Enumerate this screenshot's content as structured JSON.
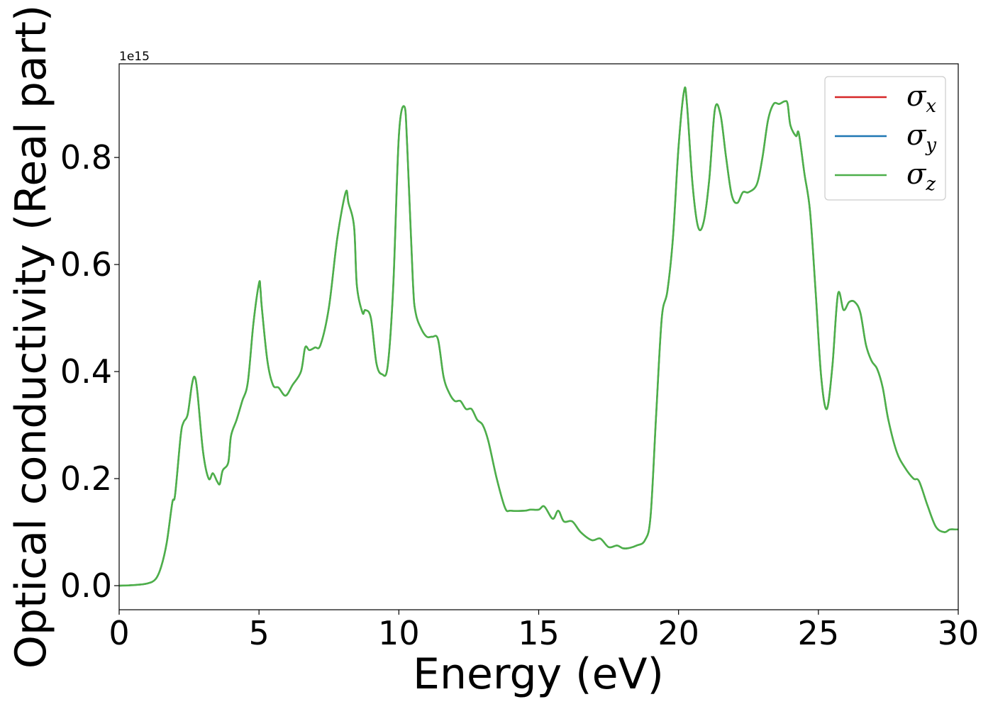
{
  "chart_data": {
    "type": "line",
    "xlabel": "Energy (eV)",
    "ylabel": "Optical conductivity (Real part)",
    "y_offset_label": "1e15",
    "xlim": [
      0,
      30
    ],
    "ylim": [
      -0.045,
      0.975
    ],
    "xticks": [
      0,
      5,
      10,
      15,
      20,
      25,
      30
    ],
    "xtick_labels": [
      "0",
      "5",
      "10",
      "15",
      "20",
      "25",
      "30"
    ],
    "yticks": [
      0.0,
      0.2,
      0.4,
      0.6,
      0.8
    ],
    "ytick_labels": [
      "0.0",
      "0.2",
      "0.4",
      "0.6",
      "0.8"
    ],
    "grid": false,
    "legend_position": "top-right",
    "series": [
      {
        "name": "σ",
        "subscript": "x",
        "color": "#d62728"
      },
      {
        "name": "σ",
        "subscript": "y",
        "color": "#1f77b4"
      },
      {
        "name": "σ",
        "subscript": "z",
        "color": "#4daf4a"
      }
    ],
    "curve": {
      "x": [
        0,
        0.5,
        1.0,
        1.3,
        1.5,
        1.7,
        1.9,
        2.0,
        2.2,
        2.3,
        2.45,
        2.6,
        2.7,
        2.8,
        3.0,
        3.2,
        3.35,
        3.5,
        3.6,
        3.7,
        3.9,
        4.0,
        4.2,
        4.4,
        4.6,
        4.8,
        5.0,
        5.05,
        5.1,
        5.3,
        5.5,
        5.7,
        5.95,
        6.2,
        6.5,
        6.65,
        6.8,
        7.0,
        7.2,
        7.5,
        7.8,
        8.1,
        8.2,
        8.4,
        8.5,
        8.7,
        8.8,
        9.0,
        9.2,
        9.4,
        9.6,
        9.8,
        10.0,
        10.2,
        10.3,
        10.5,
        10.6,
        10.8,
        11.0,
        11.2,
        11.4,
        11.6,
        11.8,
        12.0,
        12.2,
        12.4,
        12.6,
        12.8,
        13.0,
        13.2,
        13.5,
        13.8,
        14.0,
        14.5,
        14.7,
        15.0,
        15.2,
        15.5,
        15.7,
        15.9,
        16.2,
        16.5,
        16.9,
        17.2,
        17.5,
        17.8,
        18.0,
        18.2,
        18.5,
        18.8,
        19.0,
        19.2,
        19.4,
        19.6,
        19.8,
        20.0,
        20.2,
        20.3,
        20.5,
        20.7,
        20.9,
        21.1,
        21.3,
        21.5,
        21.7,
        21.9,
        22.1,
        22.3,
        22.5,
        22.8,
        23.0,
        23.2,
        23.4,
        23.6,
        23.8,
        23.9,
        24.0,
        24.2,
        24.3,
        24.5,
        24.7,
        24.9,
        25.1,
        25.3,
        25.5,
        25.7,
        25.9,
        26.1,
        26.3,
        26.5,
        26.7,
        26.9,
        27.1,
        27.3,
        27.5,
        27.8,
        28.1,
        28.4,
        28.6,
        28.9,
        29.2,
        29.5,
        29.7,
        29.9,
        30.0
      ],
      "y": [
        0.0,
        0.001,
        0.004,
        0.012,
        0.035,
        0.08,
        0.155,
        0.17,
        0.28,
        0.305,
        0.32,
        0.375,
        0.39,
        0.36,
        0.25,
        0.2,
        0.21,
        0.195,
        0.19,
        0.215,
        0.23,
        0.28,
        0.31,
        0.345,
        0.38,
        0.49,
        0.565,
        0.555,
        0.52,
        0.42,
        0.375,
        0.37,
        0.355,
        0.375,
        0.4,
        0.445,
        0.44,
        0.445,
        0.45,
        0.52,
        0.65,
        0.735,
        0.715,
        0.67,
        0.56,
        0.51,
        0.515,
        0.5,
        0.415,
        0.395,
        0.41,
        0.56,
        0.84,
        0.895,
        0.82,
        0.57,
        0.51,
        0.48,
        0.465,
        0.465,
        0.46,
        0.39,
        0.36,
        0.345,
        0.345,
        0.33,
        0.33,
        0.31,
        0.3,
        0.27,
        0.2,
        0.145,
        0.14,
        0.14,
        0.142,
        0.142,
        0.148,
        0.125,
        0.14,
        0.12,
        0.12,
        0.1,
        0.085,
        0.088,
        0.072,
        0.075,
        0.07,
        0.07,
        0.075,
        0.085,
        0.13,
        0.32,
        0.5,
        0.55,
        0.65,
        0.82,
        0.925,
        0.9,
        0.75,
        0.67,
        0.68,
        0.76,
        0.89,
        0.88,
        0.8,
        0.73,
        0.715,
        0.735,
        0.735,
        0.75,
        0.8,
        0.87,
        0.9,
        0.9,
        0.905,
        0.9,
        0.86,
        0.84,
        0.845,
        0.77,
        0.7,
        0.55,
        0.39,
        0.33,
        0.41,
        0.545,
        0.515,
        0.53,
        0.53,
        0.51,
        0.45,
        0.42,
        0.405,
        0.37,
        0.31,
        0.25,
        0.22,
        0.2,
        0.195,
        0.15,
        0.11,
        0.1,
        0.105,
        0.105,
        0.105
      ]
    }
  }
}
